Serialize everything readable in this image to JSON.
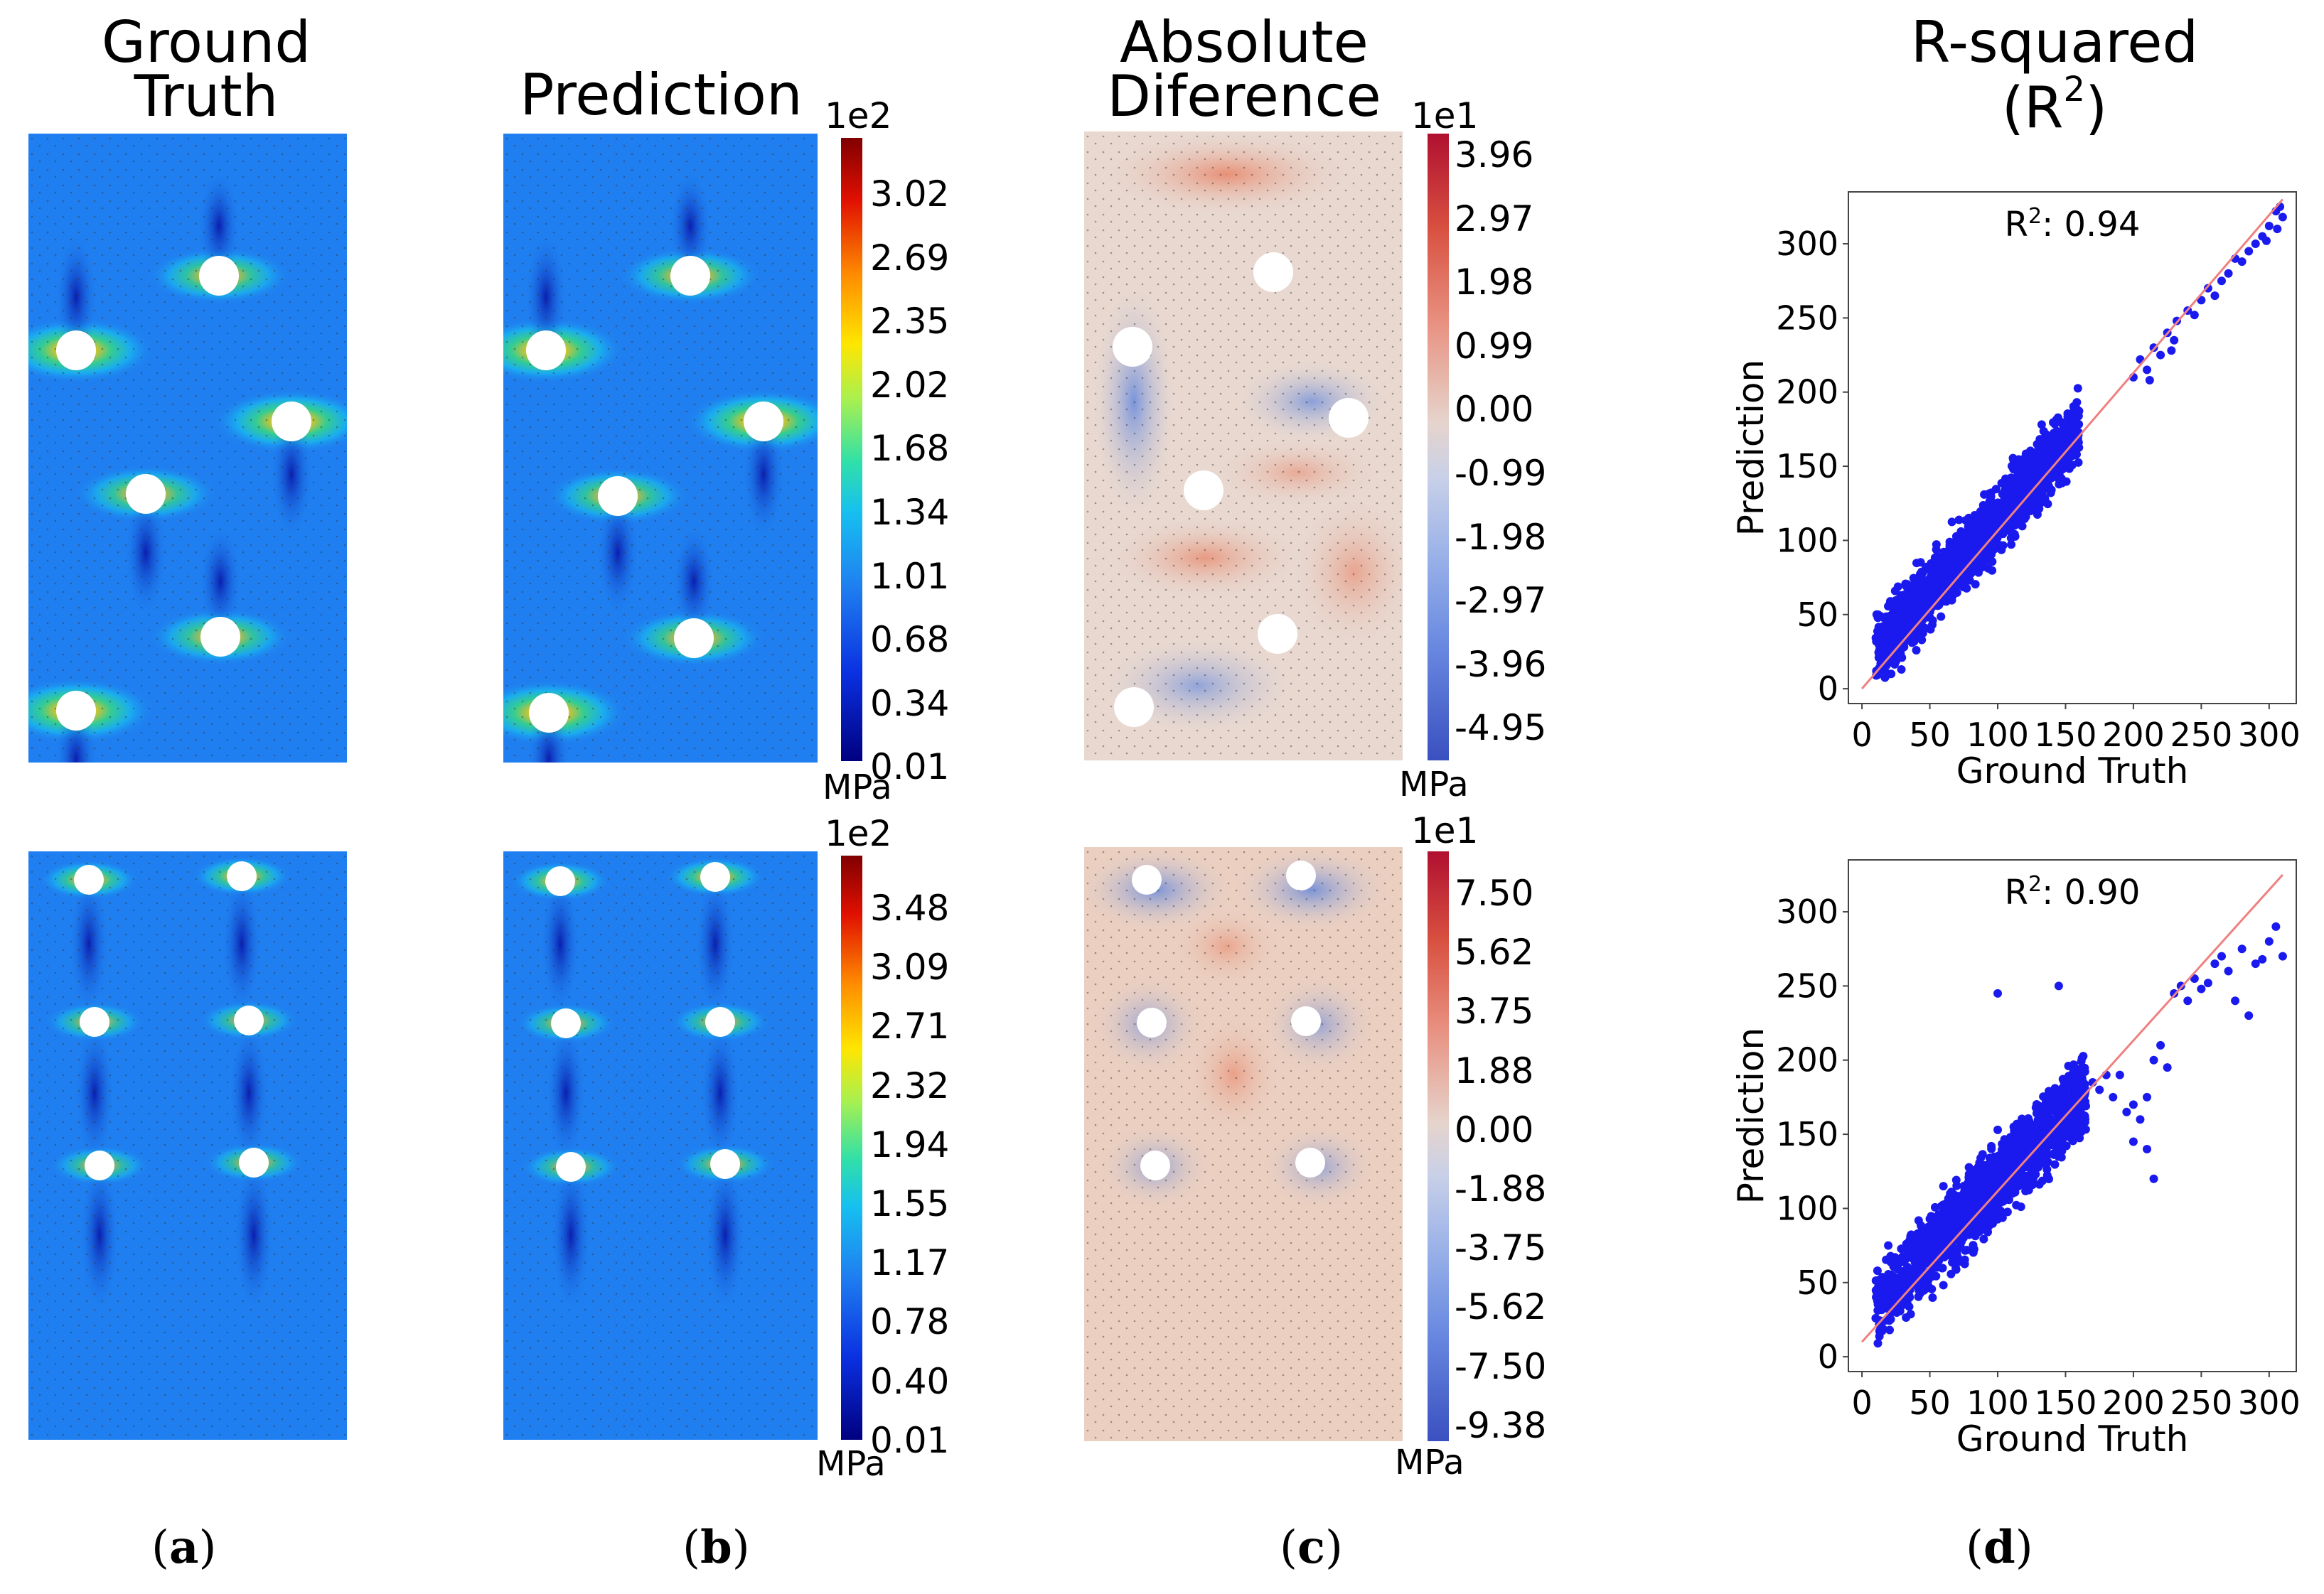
{
  "headers": {
    "col_a": [
      "Ground",
      "Truth"
    ],
    "col_b": [
      "Prediction"
    ],
    "col_c": [
      "Absolute",
      "Diference"
    ],
    "col_d": [
      "R-squared",
      "(R",
      "2",
      ")"
    ]
  },
  "panel_labels": [
    {
      "open": "(",
      "letter": "a",
      "close": ")"
    },
    {
      "open": "(",
      "letter": "b",
      "close": ")"
    },
    {
      "open": "(",
      "letter": "c",
      "close": ")"
    },
    {
      "open": "(",
      "letter": "d",
      "close": ")"
    }
  ],
  "colorbars": {
    "stress_top": {
      "exponent": "1e2",
      "unit": "MPa",
      "ticks": [
        "3.02",
        "2.69",
        "2.35",
        "2.02",
        "1.68",
        "1.34",
        "1.01",
        "0.68",
        "0.34",
        "0.01"
      ]
    },
    "diff_top": {
      "exponent": "1e1",
      "unit": "MPa",
      "ticks": [
        "3.96",
        "2.97",
        "1.98",
        "0.99",
        "0.00",
        "-0.99",
        "-1.98",
        "-2.97",
        "-3.96",
        "-4.95"
      ]
    },
    "stress_bottom": {
      "exponent": "1e2",
      "unit": "MPa",
      "ticks": [
        "3.48",
        "3.09",
        "2.71",
        "2.32",
        "1.94",
        "1.55",
        "1.17",
        "0.78",
        "0.40",
        "0.01"
      ]
    },
    "diff_bottom": {
      "exponent": "1e1",
      "unit": "MPa",
      "ticks": [
        "7.50",
        "5.62",
        "3.75",
        "1.88",
        "0.00",
        "-1.88",
        "-3.75",
        "-5.62",
        "-7.50",
        "-9.38"
      ]
    }
  },
  "colors": {
    "field_blue": "#1f7ff0",
    "diff_base": "#e8d8d0",
    "point_blue": "#1a1aee",
    "fit_line": "#f08080"
  },
  "chart_data": [
    {
      "type": "scatter",
      "title": "R²: 0.94",
      "r2_label": "R",
      "r2_sup": "2",
      "r2_value": ": 0.94",
      "xlabel": "Ground Truth",
      "ylabel": "Prediction",
      "xlim": [
        -10,
        320
      ],
      "ylim": [
        -10,
        335
      ],
      "xticks": [
        0,
        50,
        100,
        150,
        200,
        250,
        300
      ],
      "yticks": [
        0,
        50,
        100,
        150,
        200,
        250,
        300
      ],
      "fit_line": [
        [
          0,
          0
        ],
        [
          310,
          330
        ]
      ],
      "point_cluster": {
        "x_range": [
          10,
          160
        ],
        "slope": 1.0,
        "spread": 14
      },
      "upper_points": [
        [
          200,
          210
        ],
        [
          205,
          222
        ],
        [
          210,
          215
        ],
        [
          215,
          230
        ],
        [
          220,
          225
        ],
        [
          225,
          240
        ],
        [
          228,
          228
        ],
        [
          232,
          248
        ],
        [
          240,
          255
        ],
        [
          245,
          252
        ],
        [
          250,
          262
        ],
        [
          255,
          270
        ],
        [
          260,
          265
        ],
        [
          265,
          275
        ],
        [
          270,
          280
        ],
        [
          275,
          290
        ],
        [
          280,
          288
        ],
        [
          290,
          300
        ],
        [
          295,
          305
        ],
        [
          300,
          312
        ],
        [
          305,
          322
        ],
        [
          308,
          325
        ],
        [
          310,
          318
        ],
        [
          306,
          310
        ],
        [
          298,
          302
        ],
        [
          285,
          295
        ],
        [
          230,
          235
        ],
        [
          212,
          208
        ]
      ]
    },
    {
      "type": "scatter",
      "title": "R²: 0.90",
      "r2_label": "R",
      "r2_sup": "2",
      "r2_value": ": 0.90",
      "xlabel": "Ground Truth",
      "ylabel": "Prediction",
      "xlim": [
        -10,
        320
      ],
      "ylim": [
        -10,
        335
      ],
      "xticks": [
        0,
        50,
        100,
        150,
        200,
        250,
        300
      ],
      "yticks": [
        0,
        50,
        100,
        150,
        200,
        250,
        300
      ],
      "fit_line": [
        [
          0,
          10
        ],
        [
          310,
          325
        ]
      ],
      "point_cluster": {
        "x_range": [
          10,
          165
        ],
        "slope": 0.93,
        "spread": 16
      },
      "upper_points": [
        [
          100,
          245
        ],
        [
          145,
          250
        ],
        [
          170,
          185
        ],
        [
          175,
          180
        ],
        [
          180,
          190
        ],
        [
          185,
          175
        ],
        [
          190,
          190
        ],
        [
          195,
          165
        ],
        [
          200,
          170
        ],
        [
          205,
          160
        ],
        [
          210,
          175
        ],
        [
          215,
          200
        ],
        [
          220,
          210
        ],
        [
          225,
          195
        ],
        [
          230,
          245
        ],
        [
          235,
          250
        ],
        [
          240,
          240
        ],
        [
          245,
          255
        ],
        [
          250,
          248
        ],
        [
          255,
          252
        ],
        [
          260,
          265
        ],
        [
          265,
          270
        ],
        [
          270,
          260
        ],
        [
          275,
          240
        ],
        [
          280,
          275
        ],
        [
          285,
          230
        ],
        [
          290,
          265
        ],
        [
          295,
          268
        ],
        [
          300,
          280
        ],
        [
          305,
          290
        ],
        [
          310,
          270
        ],
        [
          60,
          115
        ],
        [
          65,
          110
        ],
        [
          200,
          145
        ],
        [
          210,
          140
        ],
        [
          215,
          120
        ]
      ]
    }
  ]
}
